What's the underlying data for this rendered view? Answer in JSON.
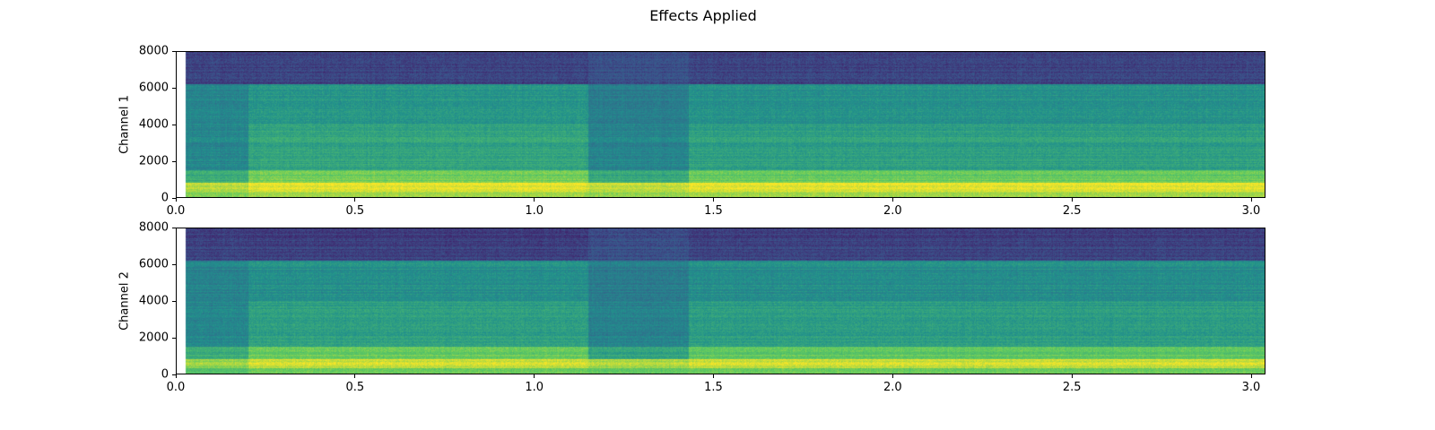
{
  "chart_data": [
    {
      "type": "heatmap",
      "title": "Effects Applied",
      "ylabel": "Channel 1",
      "xlabel": "",
      "xlim": [
        0.0,
        3.04
      ],
      "ylim": [
        0,
        8000
      ],
      "data_start_x": 0.025,
      "xticks": [
        "0.0",
        "0.5",
        "1.0",
        "1.5",
        "2.0",
        "2.5",
        "3.0"
      ],
      "yticks": [
        "0",
        "2000",
        "4000",
        "6000",
        "8000"
      ],
      "colormap": "viridis",
      "time_edges": [
        0.025,
        0.2,
        1.15,
        1.43,
        3.04
      ],
      "freq_edges": [
        0,
        300,
        800,
        1500,
        4000,
        6200,
        8000
      ],
      "relative_level": [
        [
          0.8,
          0.85,
          0.83,
          0.85
        ],
        [
          0.88,
          0.95,
          0.9,
          0.95
        ],
        [
          0.62,
          0.78,
          0.6,
          0.76
        ],
        [
          0.46,
          0.58,
          0.45,
          0.56
        ],
        [
          0.45,
          0.52,
          0.42,
          0.5
        ],
        [
          0.2,
          0.2,
          0.24,
          0.2
        ]
      ]
    },
    {
      "type": "heatmap",
      "ylabel": "Channel 2",
      "xlabel": "",
      "xlim": [
        0.0,
        3.04
      ],
      "ylim": [
        0,
        8000
      ],
      "data_start_x": 0.025,
      "xticks": [
        "0.0",
        "0.5",
        "1.0",
        "1.5",
        "2.0",
        "2.5",
        "3.0"
      ],
      "yticks": [
        "0",
        "2000",
        "4000",
        "6000",
        "8000"
      ],
      "colormap": "viridis",
      "time_edges": [
        0.025,
        0.2,
        1.15,
        1.43,
        3.04
      ],
      "freq_edges": [
        0,
        300,
        800,
        1500,
        4000,
        6200,
        8000
      ],
      "relative_level": [
        [
          0.72,
          0.78,
          0.76,
          0.78
        ],
        [
          0.85,
          0.93,
          0.88,
          0.93
        ],
        [
          0.62,
          0.76,
          0.58,
          0.74
        ],
        [
          0.46,
          0.56,
          0.44,
          0.55
        ],
        [
          0.45,
          0.5,
          0.42,
          0.49
        ],
        [
          0.2,
          0.19,
          0.24,
          0.2
        ]
      ]
    }
  ]
}
